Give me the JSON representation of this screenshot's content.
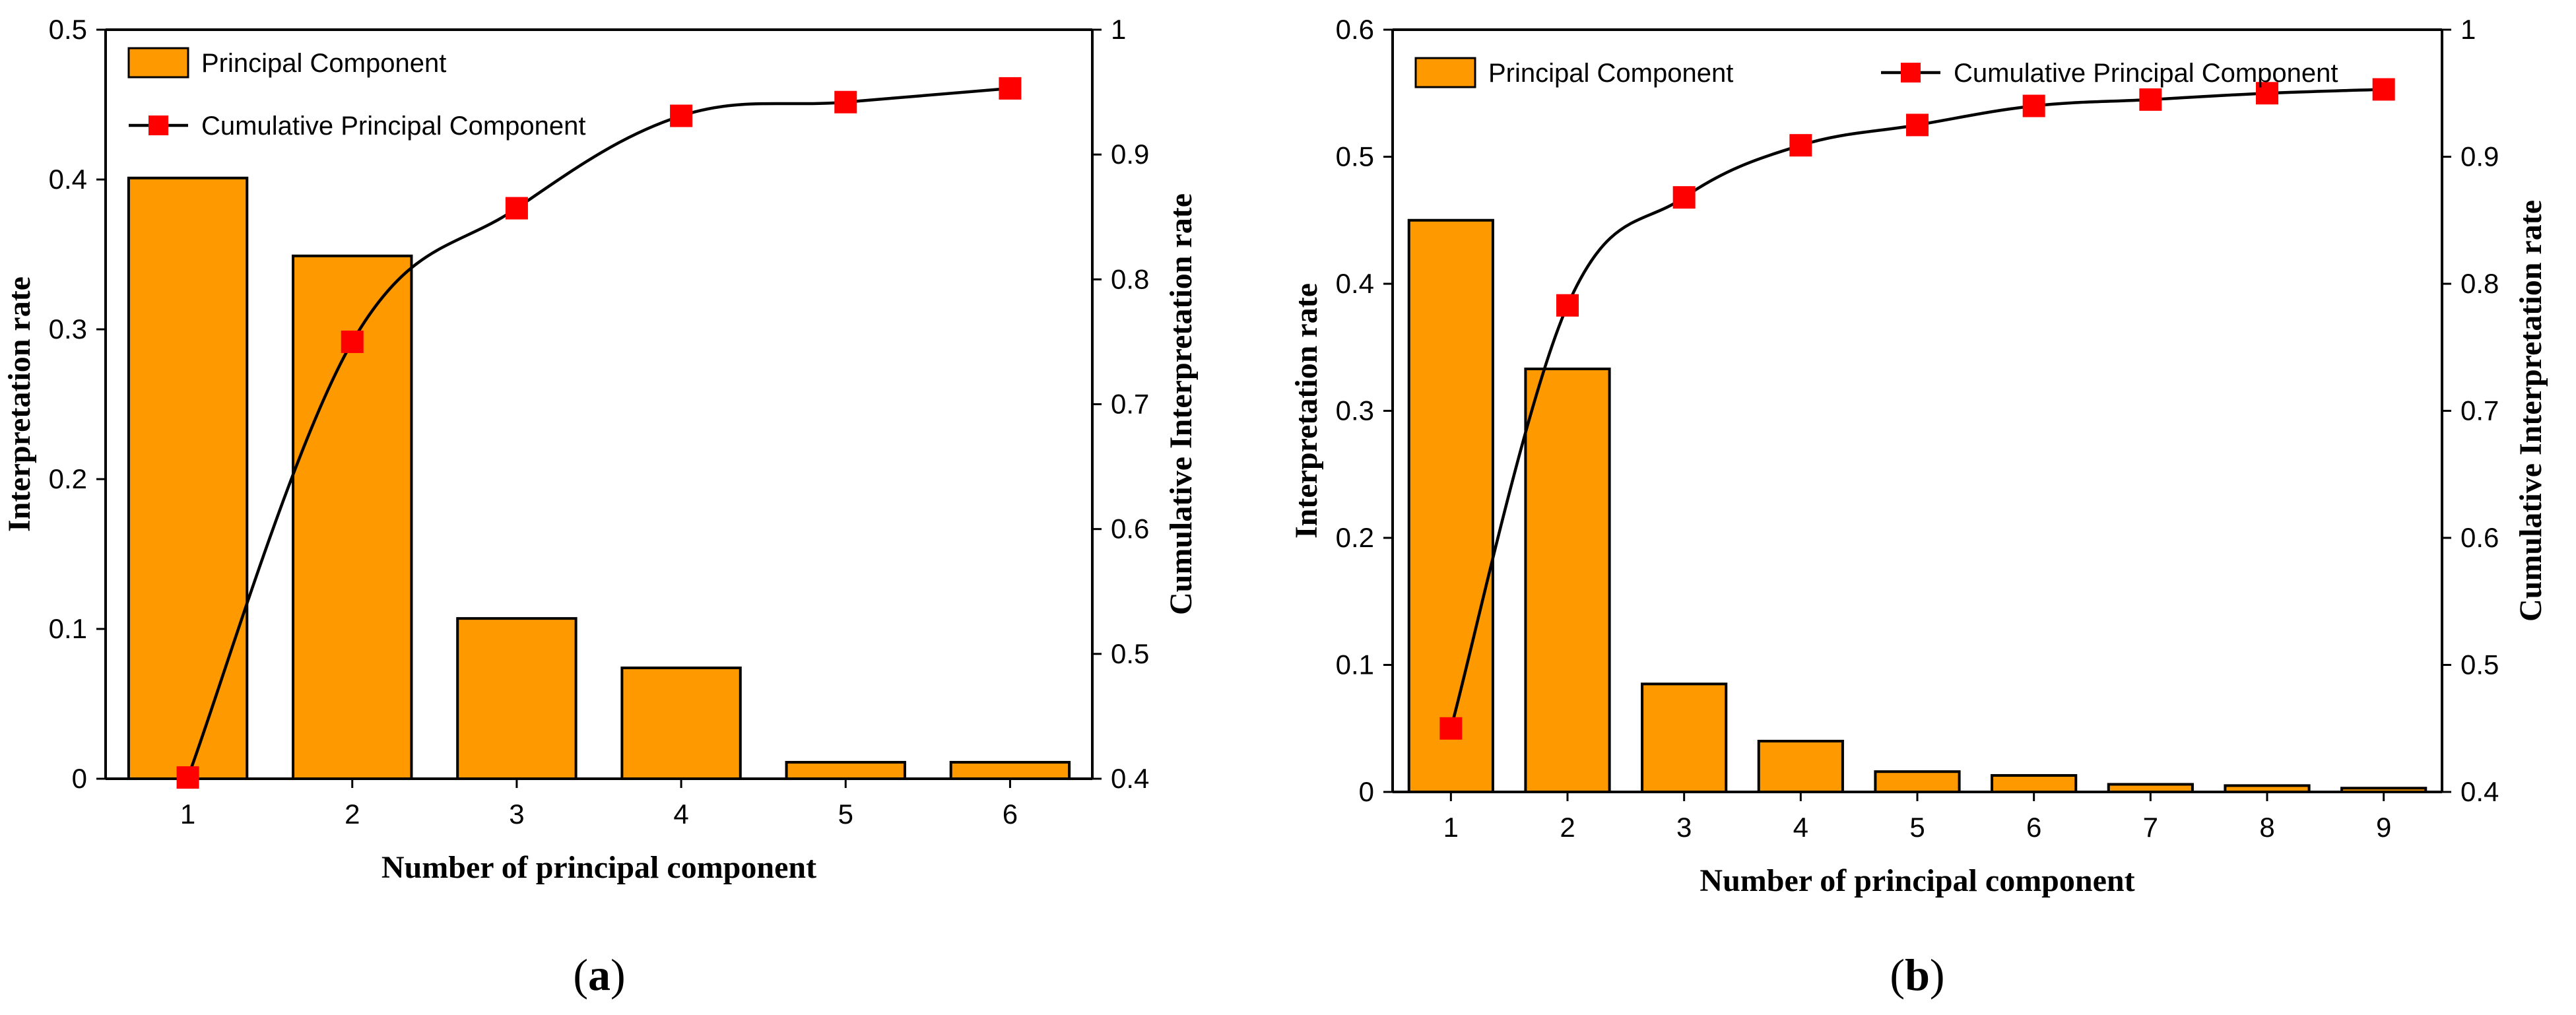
{
  "colors": {
    "bar_fill": "#FF9900",
    "bar_stroke": "#000000",
    "marker": "#FF0000",
    "line": "#000000"
  },
  "chart_data": [
    {
      "type": "bar+line",
      "panel_label": "a",
      "categories": [
        "1",
        "2",
        "3",
        "4",
        "5",
        "6"
      ],
      "series": [
        {
          "name": "Principal Component",
          "axis": "left",
          "kind": "bar",
          "values": [
            0.401,
            0.349,
            0.107,
            0.074,
            0.011,
            0.011
          ]
        },
        {
          "name": "Cumulative Principal Component",
          "axis": "right",
          "kind": "line",
          "values": [
            0.401,
            0.75,
            0.857,
            0.931,
            0.942,
            0.953
          ]
        }
      ],
      "xlabel": "Number of principal component",
      "ylabel": "Interpretation rate",
      "ylabel_right": "Cumulative Interpretation rate",
      "ylim": [
        0,
        0.5
      ],
      "ylim_right": [
        0.4,
        1.0
      ],
      "yticks": [
        "0",
        "0.1",
        "0.2",
        "0.3",
        "0.4",
        "0.5"
      ],
      "yticks_right": [
        "0.4",
        "0.5",
        "0.6",
        "0.7",
        "0.8",
        "0.9",
        "1"
      ],
      "legend_placement": "top-left, stacked"
    },
    {
      "type": "bar+line",
      "panel_label": "b",
      "categories": [
        "1",
        "2",
        "3",
        "4",
        "5",
        "6",
        "7",
        "8",
        "9"
      ],
      "series": [
        {
          "name": "Principal Component",
          "axis": "left",
          "kind": "bar",
          "values": [
            0.45,
            0.333,
            0.085,
            0.04,
            0.016,
            0.013,
            0.006,
            0.005,
            0.003
          ]
        },
        {
          "name": "Cumulative Principal Component",
          "axis": "right",
          "kind": "line",
          "values": [
            0.45,
            0.783,
            0.868,
            0.909,
            0.925,
            0.94,
            0.945,
            0.95,
            0.953
          ]
        }
      ],
      "xlabel": "Number of principal component",
      "ylabel": "Interpretation rate",
      "ylabel_right": "Cumulative Interpretation rate",
      "ylim": [
        0,
        0.6
      ],
      "ylim_right": [
        0.4,
        1.0
      ],
      "yticks": [
        "0",
        "0.1",
        "0.2",
        "0.3",
        "0.4",
        "0.5",
        "0.6"
      ],
      "yticks_right": [
        "0.4",
        "0.5",
        "0.6",
        "0.7",
        "0.8",
        "0.9",
        "1"
      ],
      "legend_placement": "top, side-by-side"
    }
  ]
}
